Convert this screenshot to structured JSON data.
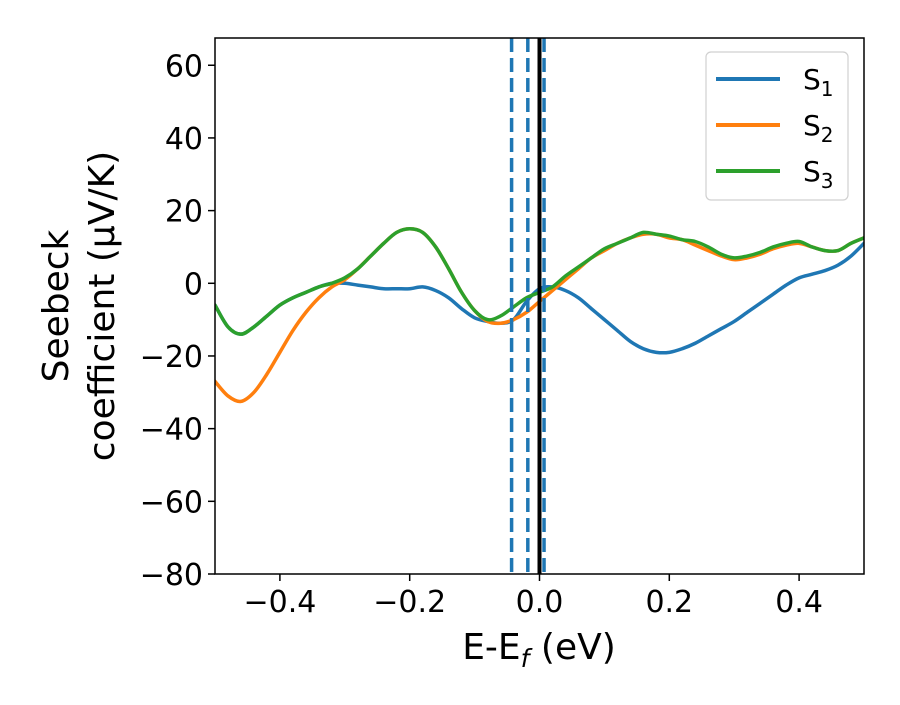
{
  "chart_data": {
    "type": "line",
    "xlabel": "E-E",
    "xlabel_sub": "f",
    "xlabel_unit": " (eV)",
    "ylabel_line1": "Seebeck",
    "ylabel_line2": "coefficient  (μV/K)",
    "xlim": [
      -0.5,
      0.5
    ],
    "ylim": [
      -80,
      67.5
    ],
    "xticks": [
      -0.4,
      -0.2,
      0.0,
      0.2,
      0.4
    ],
    "xtick_labels": [
      "−0.4",
      "−0.2",
      "0.0",
      "0.2",
      "0.4"
    ],
    "yticks": [
      -80,
      -60,
      -40,
      -20,
      0,
      20,
      40,
      60
    ],
    "ytick_labels": [
      "−80",
      "−60",
      "−40",
      "−20",
      "0",
      "20",
      "40",
      "60"
    ],
    "grid": false,
    "legend_position": "top-right",
    "vertical_lines": [
      {
        "x": 0.0,
        "style": "solid",
        "color": "#000000"
      },
      {
        "x": -0.043,
        "style": "dashed",
        "color": "#1f77b4"
      },
      {
        "x": -0.018,
        "style": "dashed",
        "color": "#1f77b4"
      },
      {
        "x": 0.007,
        "style": "dashed",
        "color": "#1f77b4"
      }
    ],
    "series": [
      {
        "name": "S",
        "name_sub": "1",
        "color": "#1f77b4",
        "points": [
          [
            -0.5,
            -6
          ],
          [
            -0.48,
            -12
          ],
          [
            -0.46,
            -14
          ],
          [
            -0.44,
            -12
          ],
          [
            -0.42,
            -9
          ],
          [
            -0.4,
            -6
          ],
          [
            -0.38,
            -4
          ],
          [
            -0.36,
            -2.5
          ],
          [
            -0.34,
            -1
          ],
          [
            -0.32,
            0
          ],
          [
            -0.3,
            0
          ],
          [
            -0.28,
            -0.5
          ],
          [
            -0.26,
            -1
          ],
          [
            -0.24,
            -1.5
          ],
          [
            -0.22,
            -1.5
          ],
          [
            -0.2,
            -1.5
          ],
          [
            -0.18,
            -1
          ],
          [
            -0.16,
            -2
          ],
          [
            -0.14,
            -4
          ],
          [
            -0.12,
            -7
          ],
          [
            -0.1,
            -9.5
          ],
          [
            -0.08,
            -10.5
          ],
          [
            -0.06,
            -11
          ],
          [
            -0.04,
            -10
          ],
          [
            -0.02,
            -5
          ],
          [
            0.0,
            -1.5
          ],
          [
            0.02,
            -1
          ],
          [
            0.04,
            -2
          ],
          [
            0.06,
            -4
          ],
          [
            0.08,
            -7
          ],
          [
            0.1,
            -10
          ],
          [
            0.12,
            -13
          ],
          [
            0.14,
            -16
          ],
          [
            0.16,
            -18
          ],
          [
            0.18,
            -19
          ],
          [
            0.2,
            -19
          ],
          [
            0.22,
            -18
          ],
          [
            0.24,
            -16.5
          ],
          [
            0.26,
            -14.5
          ],
          [
            0.28,
            -12.5
          ],
          [
            0.3,
            -10.5
          ],
          [
            0.32,
            -8
          ],
          [
            0.34,
            -5.5
          ],
          [
            0.36,
            -3
          ],
          [
            0.38,
            -0.5
          ],
          [
            0.4,
            1.5
          ],
          [
            0.42,
            2.5
          ],
          [
            0.44,
            3.5
          ],
          [
            0.46,
            5
          ],
          [
            0.48,
            7.5
          ],
          [
            0.5,
            11
          ]
        ]
      },
      {
        "name": "S",
        "name_sub": "2",
        "color": "#ff7f0e",
        "points": [
          [
            -0.5,
            -27
          ],
          [
            -0.48,
            -31
          ],
          [
            -0.46,
            -32.5
          ],
          [
            -0.44,
            -30
          ],
          [
            -0.42,
            -25
          ],
          [
            -0.4,
            -19
          ],
          [
            -0.38,
            -13
          ],
          [
            -0.36,
            -8
          ],
          [
            -0.34,
            -4
          ],
          [
            -0.32,
            -1
          ],
          [
            -0.3,
            1
          ],
          [
            -0.28,
            4
          ],
          [
            -0.26,
            7.5
          ],
          [
            -0.24,
            11
          ],
          [
            -0.22,
            14
          ],
          [
            -0.2,
            15
          ],
          [
            -0.18,
            14
          ],
          [
            -0.16,
            10
          ],
          [
            -0.14,
            4
          ],
          [
            -0.12,
            -2.5
          ],
          [
            -0.1,
            -7.5
          ],
          [
            -0.08,
            -10.5
          ],
          [
            -0.06,
            -11
          ],
          [
            -0.04,
            -10
          ],
          [
            -0.02,
            -8
          ],
          [
            0.0,
            -5
          ],
          [
            0.02,
            -2
          ],
          [
            0.04,
            1
          ],
          [
            0.06,
            4
          ],
          [
            0.08,
            7
          ],
          [
            0.1,
            9
          ],
          [
            0.12,
            11
          ],
          [
            0.14,
            12.5
          ],
          [
            0.16,
            13.5
          ],
          [
            0.18,
            13.5
          ],
          [
            0.2,
            12.5
          ],
          [
            0.22,
            12
          ],
          [
            0.24,
            10.5
          ],
          [
            0.26,
            9
          ],
          [
            0.28,
            7.5
          ],
          [
            0.3,
            6.5
          ],
          [
            0.32,
            7
          ],
          [
            0.34,
            8
          ],
          [
            0.36,
            9.5
          ],
          [
            0.38,
            10.5
          ],
          [
            0.4,
            11
          ],
          [
            0.42,
            10
          ],
          [
            0.44,
            9
          ],
          [
            0.46,
            9
          ],
          [
            0.48,
            11
          ],
          [
            0.5,
            12.5
          ]
        ]
      },
      {
        "name": "S",
        "name_sub": "3",
        "color": "#2ca02c",
        "points": [
          [
            -0.5,
            -6
          ],
          [
            -0.48,
            -12
          ],
          [
            -0.46,
            -14
          ],
          [
            -0.44,
            -12
          ],
          [
            -0.42,
            -9
          ],
          [
            -0.4,
            -6
          ],
          [
            -0.38,
            -4
          ],
          [
            -0.36,
            -2.5
          ],
          [
            -0.34,
            -1
          ],
          [
            -0.32,
            0
          ],
          [
            -0.3,
            1.5
          ],
          [
            -0.28,
            4
          ],
          [
            -0.26,
            7.5
          ],
          [
            -0.24,
            11
          ],
          [
            -0.22,
            14
          ],
          [
            -0.2,
            15
          ],
          [
            -0.18,
            14
          ],
          [
            -0.16,
            10
          ],
          [
            -0.14,
            4
          ],
          [
            -0.12,
            -2.5
          ],
          [
            -0.1,
            -7.5
          ],
          [
            -0.08,
            -10
          ],
          [
            -0.06,
            -9
          ],
          [
            -0.04,
            -6.5
          ],
          [
            -0.02,
            -4
          ],
          [
            0.0,
            -2.5
          ],
          [
            0.02,
            -1
          ],
          [
            0.04,
            2
          ],
          [
            0.06,
            4.5
          ],
          [
            0.08,
            7
          ],
          [
            0.1,
            9.5
          ],
          [
            0.12,
            11
          ],
          [
            0.14,
            12.5
          ],
          [
            0.16,
            14
          ],
          [
            0.18,
            13.5
          ],
          [
            0.2,
            13
          ],
          [
            0.22,
            12
          ],
          [
            0.24,
            11.5
          ],
          [
            0.26,
            10
          ],
          [
            0.28,
            8
          ],
          [
            0.3,
            7
          ],
          [
            0.32,
            7.5
          ],
          [
            0.34,
            8.5
          ],
          [
            0.36,
            10
          ],
          [
            0.38,
            11
          ],
          [
            0.4,
            11.5
          ],
          [
            0.42,
            10
          ],
          [
            0.44,
            9
          ],
          [
            0.46,
            9
          ],
          [
            0.48,
            11
          ],
          [
            0.5,
            12.5
          ]
        ]
      }
    ]
  }
}
